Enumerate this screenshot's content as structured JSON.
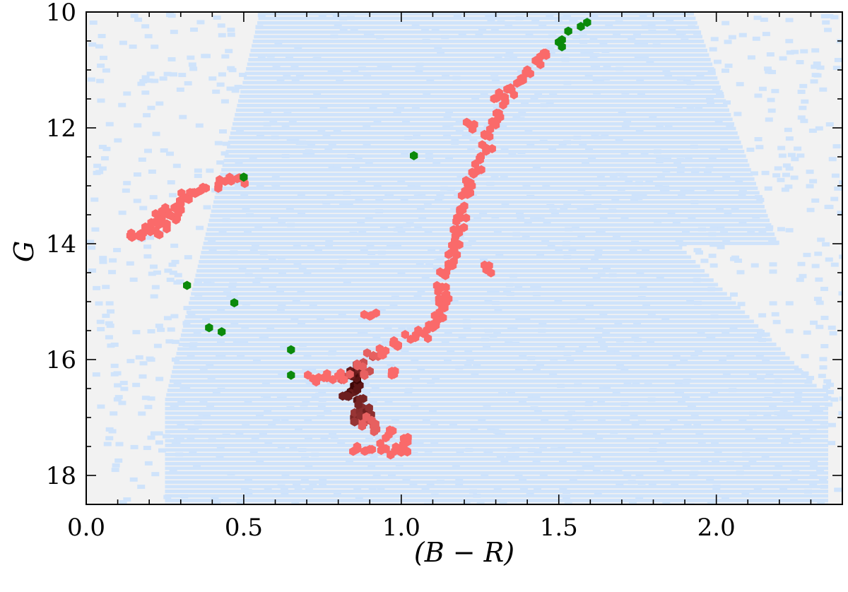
{
  "chart_data": {
    "type": "scatter",
    "title": "",
    "xlabel": "(B − R)",
    "ylabel": "G",
    "xlim": [
      0.0,
      2.4
    ],
    "ylim": [
      18.5,
      10.0
    ],
    "y_inverted": true,
    "x_ticks": [
      0.0,
      0.5,
      1.0,
      1.5,
      2.0
    ],
    "x_tick_labels": [
      "0.0",
      "0.5",
      "1.0",
      "1.5",
      "2.0"
    ],
    "y_ticks": [
      10,
      12,
      14,
      16,
      18
    ],
    "y_tick_labels": [
      "10",
      "12",
      "14",
      "16",
      "18"
    ],
    "grid": false,
    "colors": {
      "background": "#f2f2f2",
      "field_density": "#cfe3fb",
      "cluster_low": "#fa6a6a",
      "cluster_high": "#3a0303",
      "highlighted": "#0b8a0b"
    },
    "series": [
      {
        "role": "field-star-density",
        "note": "",
        "dense_region": {
          "x": [
            0.35,
            2.4
          ],
          "y": [
            10.0,
            18.5
          ]
        }
      },
      {
        "role": "cluster-members",
        "points": [
          [
            0.14,
            13.86
          ],
          [
            0.18,
            13.82
          ],
          [
            0.2,
            13.72
          ],
          [
            0.22,
            13.62
          ],
          [
            0.24,
            13.55
          ],
          [
            0.26,
            13.45
          ],
          [
            0.28,
            13.38
          ],
          [
            0.3,
            13.3
          ],
          [
            0.32,
            13.2
          ],
          [
            0.35,
            13.12
          ],
          [
            0.38,
            13.04
          ],
          [
            0.42,
            12.98
          ],
          [
            0.46,
            12.92
          ],
          [
            0.5,
            12.88
          ],
          [
            0.22,
            13.78
          ],
          [
            0.25,
            13.66
          ],
          [
            0.27,
            13.52
          ],
          [
            0.3,
            13.42
          ],
          [
            0.86,
            17.5
          ],
          [
            0.9,
            17.55
          ],
          [
            0.94,
            17.52
          ],
          [
            0.98,
            17.58
          ],
          [
            1.02,
            17.42
          ],
          [
            1.0,
            17.6
          ],
          [
            0.88,
            17.1
          ],
          [
            0.92,
            17.2
          ],
          [
            0.96,
            17.3
          ],
          [
            0.85,
            17.0
          ],
          [
            0.87,
            16.85
          ],
          [
            0.86,
            16.7
          ],
          [
            0.84,
            16.55
          ],
          [
            0.85,
            16.45
          ],
          [
            0.86,
            16.35
          ],
          [
            0.85,
            16.25
          ],
          [
            0.86,
            16.15
          ],
          [
            0.83,
            16.6
          ],
          [
            0.89,
            16.9
          ],
          [
            0.9,
            17.05
          ],
          [
            0.82,
            16.3
          ],
          [
            0.9,
            16.2
          ],
          [
            0.88,
            16.05
          ],
          [
            0.91,
            15.95
          ],
          [
            0.95,
            15.85
          ],
          [
            0.99,
            15.75
          ],
          [
            1.03,
            15.65
          ],
          [
            1.07,
            15.55
          ],
          [
            1.1,
            15.45
          ],
          [
            1.12,
            15.3
          ],
          [
            1.13,
            15.1
          ],
          [
            1.12,
            14.95
          ],
          [
            1.13,
            14.75
          ],
          [
            1.14,
            14.55
          ],
          [
            1.15,
            14.35
          ],
          [
            1.16,
            14.15
          ],
          [
            1.17,
            13.95
          ],
          [
            1.18,
            13.75
          ],
          [
            1.19,
            13.55
          ],
          [
            1.2,
            13.35
          ],
          [
            1.21,
            13.15
          ],
          [
            1.22,
            12.95
          ],
          [
            1.24,
            12.75
          ],
          [
            1.25,
            12.55
          ],
          [
            1.27,
            12.35
          ],
          [
            1.28,
            12.15
          ],
          [
            1.3,
            11.95
          ],
          [
            1.31,
            11.75
          ],
          [
            1.33,
            11.55
          ],
          [
            1.35,
            11.35
          ],
          [
            1.38,
            11.15
          ],
          [
            1.4,
            11.0
          ],
          [
            1.43,
            10.85
          ],
          [
            1.46,
            10.75
          ],
          [
            0.72,
            16.33
          ],
          [
            0.76,
            16.3
          ],
          [
            0.8,
            16.28
          ],
          [
            0.9,
            15.25
          ],
          [
            0.98,
            16.2
          ],
          [
            1.27,
            14.45
          ],
          [
            1.22,
            11.95
          ],
          [
            1.31,
            11.42
          ],
          [
            1.15,
            14.95
          ]
        ]
      },
      {
        "role": "highlighted-stars",
        "points": [
          [
            0.32,
            14.72
          ],
          [
            0.39,
            15.45
          ],
          [
            0.43,
            15.52
          ],
          [
            0.47,
            15.02
          ],
          [
            0.5,
            12.85
          ],
          [
            0.65,
            15.83
          ],
          [
            0.65,
            16.27
          ],
          [
            1.04,
            12.48
          ],
          [
            1.5,
            10.52
          ],
          [
            1.51,
            10.48
          ],
          [
            1.51,
            10.6
          ],
          [
            1.53,
            10.33
          ],
          [
            1.57,
            10.25
          ],
          [
            1.59,
            10.18
          ]
        ]
      }
    ]
  }
}
